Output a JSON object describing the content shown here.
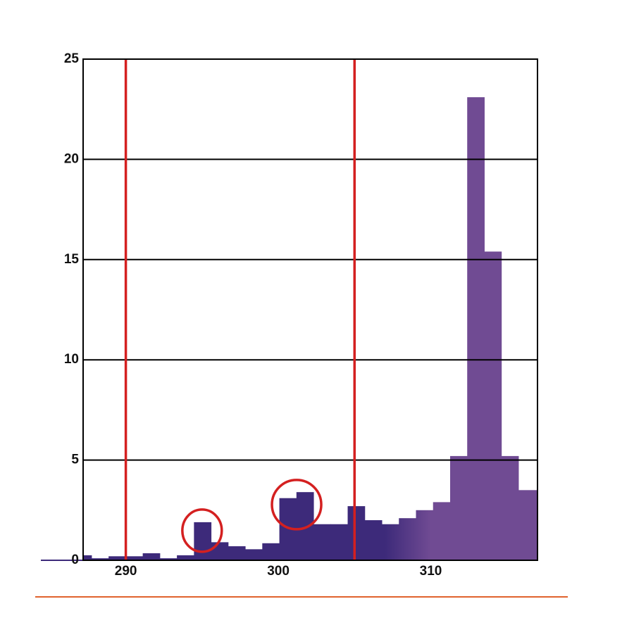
{
  "chart_data": {
    "type": "histogram",
    "bins": [
      287.2,
      287.75,
      288.87,
      289.99,
      291.11,
      292.23,
      293.35,
      294.47,
      295.59,
      296.71,
      297.83,
      298.95,
      300.07,
      301.19,
      302.31,
      303.43,
      304.55,
      305.67,
      306.79,
      307.91,
      309.03,
      310.15,
      311.27,
      312.39,
      313.51,
      314.63,
      315.75,
      317.0
    ],
    "counts": [
      0.25,
      0.1,
      0.2,
      0.2,
      0.35,
      0.1,
      0.25,
      1.9,
      0.9,
      0.7,
      0.55,
      0.85,
      3.1,
      3.4,
      1.8,
      1.8,
      2.7,
      2.0,
      1.8,
      2.1,
      2.5,
      2.9,
      5.2,
      23.1,
      15.4,
      5.2,
      3.5
    ],
    "colors": [
      "#3d2a7a",
      "#704b93"
    ],
    "color_change": [
      307,
      310
    ],
    "xlim": [
      287.2,
      317.0
    ],
    "xticks": [
      290,
      300,
      310
    ],
    "ylim": [
      0,
      25
    ],
    "yticks": [
      0,
      5,
      10,
      15,
      20,
      25
    ],
    "grid": true,
    "vlines": [
      290,
      305
    ],
    "vline_color": "#d42020",
    "highlights": [
      {
        "x": 295.0,
        "y": 1.9
      },
      {
        "x": 301.2,
        "y": 3.2
      }
    ]
  }
}
